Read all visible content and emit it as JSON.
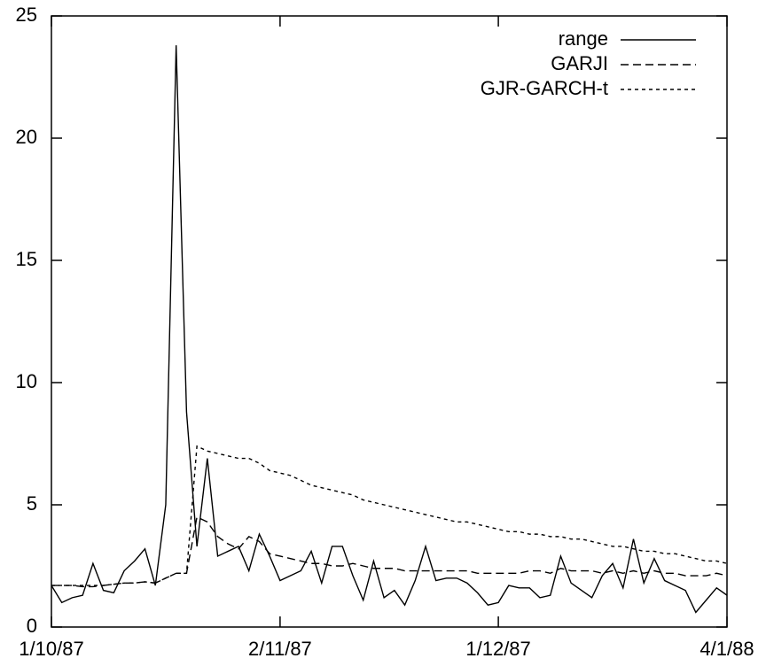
{
  "chart_data": {
    "type": "line",
    "x": [
      0,
      1,
      2,
      3,
      4,
      5,
      6,
      7,
      8,
      9,
      10,
      11,
      12,
      13,
      14,
      15,
      16,
      17,
      18,
      19,
      20,
      21,
      22,
      23,
      24,
      25,
      26,
      27,
      28,
      29,
      30,
      31,
      32,
      33,
      34,
      35,
      36,
      37,
      38,
      39,
      40,
      41,
      42,
      43,
      44,
      45,
      46,
      47,
      48,
      49,
      50,
      51,
      52,
      53,
      54,
      55,
      56,
      57,
      58,
      59,
      60,
      61,
      62,
      63,
      64,
      65
    ],
    "xlim": [
      0,
      65
    ],
    "xticks": [
      {
        "value": 0,
        "label": "1/10/87"
      },
      {
        "value": 22,
        "label": "2/11/87"
      },
      {
        "value": 43,
        "label": "1/12/87"
      },
      {
        "value": 65,
        "label": "4/1/88"
      }
    ],
    "ylim": [
      0,
      25
    ],
    "yticks": [
      0,
      5,
      10,
      15,
      20,
      25
    ],
    "legend": "top-right",
    "series": [
      {
        "name": "range",
        "color": "#000000",
        "dash": "solid",
        "values": [
          1.7,
          1.0,
          1.2,
          1.3,
          2.6,
          1.5,
          1.4,
          2.3,
          2.7,
          3.2,
          1.7,
          5.0,
          23.8,
          8.8,
          3.3,
          6.9,
          2.9,
          3.1,
          3.3,
          2.3,
          3.8,
          2.9,
          1.9,
          2.1,
          2.3,
          3.1,
          1.8,
          3.3,
          3.3,
          2.1,
          1.1,
          2.7,
          1.2,
          1.5,
          0.9,
          1.9,
          3.3,
          1.9,
          2.0,
          2.0,
          1.8,
          1.4,
          0.9,
          1.0,
          1.7,
          1.6,
          1.6,
          1.2,
          1.3,
          2.9,
          1.8,
          1.5,
          1.2,
          2.1,
          2.6,
          1.6,
          3.6,
          1.8,
          2.8,
          1.9,
          1.7,
          1.5,
          0.6,
          1.1,
          1.6,
          1.3
        ]
      },
      {
        "name": "GARJI",
        "color": "#000000",
        "dash": "dashed",
        "values": [
          1.7,
          1.7,
          1.7,
          1.65,
          1.65,
          1.7,
          1.75,
          1.8,
          1.8,
          1.85,
          1.8,
          2.0,
          2.2,
          2.2,
          4.5,
          4.3,
          3.7,
          3.4,
          3.2,
          3.7,
          3.5,
          3.0,
          2.9,
          2.8,
          2.7,
          2.6,
          2.6,
          2.5,
          2.5,
          2.6,
          2.5,
          2.4,
          2.4,
          2.4,
          2.3,
          2.3,
          2.3,
          2.3,
          2.3,
          2.3,
          2.3,
          2.2,
          2.2,
          2.2,
          2.2,
          2.2,
          2.3,
          2.3,
          2.2,
          2.4,
          2.3,
          2.3,
          2.3,
          2.2,
          2.3,
          2.2,
          2.3,
          2.2,
          2.3,
          2.2,
          2.2,
          2.1,
          2.1,
          2.1,
          2.2,
          2.1
        ]
      },
      {
        "name": "GJR-GARCH-t",
        "color": "#000000",
        "dash": "dotted",
        "values": [
          1.7,
          1.7,
          1.7,
          1.7,
          1.7,
          1.7,
          1.75,
          1.8,
          1.8,
          1.85,
          1.8,
          2.0,
          2.2,
          2.2,
          7.4,
          7.2,
          7.1,
          7.0,
          6.9,
          6.9,
          6.7,
          6.4,
          6.3,
          6.2,
          6.0,
          5.8,
          5.7,
          5.6,
          5.5,
          5.4,
          5.2,
          5.1,
          5.0,
          4.9,
          4.8,
          4.7,
          4.6,
          4.5,
          4.4,
          4.3,
          4.3,
          4.2,
          4.1,
          4.0,
          3.9,
          3.9,
          3.8,
          3.8,
          3.7,
          3.7,
          3.6,
          3.6,
          3.5,
          3.4,
          3.3,
          3.3,
          3.2,
          3.1,
          3.1,
          3.0,
          3.0,
          2.9,
          2.8,
          2.7,
          2.7,
          2.6
        ]
      }
    ]
  }
}
